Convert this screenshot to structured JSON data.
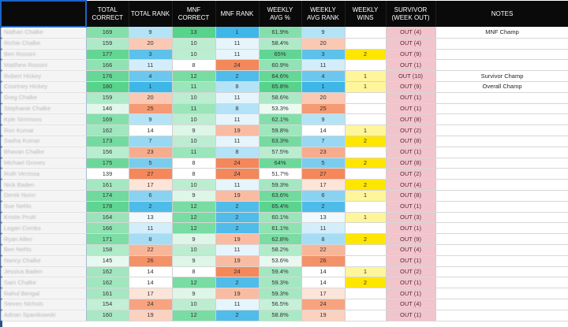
{
  "headers": [
    {
      "key": "name",
      "label": ""
    },
    {
      "key": "total_correct",
      "label": "TOTAL CORRECT"
    },
    {
      "key": "total_rank",
      "label": "TOTAL RANK"
    },
    {
      "key": "mnf_correct",
      "label": "MNF CORRECT"
    },
    {
      "key": "mnf_rank",
      "label": "MNF RANK"
    },
    {
      "key": "weekly_avg",
      "label": "WEEKLY AVG %"
    },
    {
      "key": "weekly_avg_rank",
      "label": "WEEKLY AVG RANK"
    },
    {
      "key": "weekly_wins",
      "label": "WEEKLY WINS"
    },
    {
      "key": "survivor",
      "label": "SURVIVOR (WEEK OUT)"
    },
    {
      "key": "notes",
      "label": "NOTES"
    }
  ],
  "rows": [
    {
      "name": "Nathan Chalke",
      "total_correct": "169",
      "total_rank": "9",
      "mnf_correct": "13",
      "mnf_rank": "1",
      "weekly_avg": "61.9%",
      "weekly_avg_rank": "9",
      "weekly_wins": "",
      "survivor": "OUT (4)",
      "notes": "MNF Champ"
    },
    {
      "name": "Richie Chalke",
      "total_correct": "159",
      "total_rank": "20",
      "mnf_correct": "10",
      "mnf_rank": "11",
      "weekly_avg": "58.4%",
      "weekly_avg_rank": "20",
      "weekly_wins": "",
      "survivor": "OUT (4)",
      "notes": ""
    },
    {
      "name": "Ben Rossini",
      "total_correct": "177",
      "total_rank": "3",
      "mnf_correct": "10",
      "mnf_rank": "11",
      "weekly_avg": "65%",
      "weekly_avg_rank": "3",
      "weekly_wins": "2",
      "survivor": "OUT (9)",
      "notes": ""
    },
    {
      "name": "Matthew Rossini",
      "total_correct": "166",
      "total_rank": "11",
      "mnf_correct": "8",
      "mnf_rank": "24",
      "weekly_avg": "60.9%",
      "weekly_avg_rank": "11",
      "weekly_wins": "",
      "survivor": "OUT (1)",
      "notes": ""
    },
    {
      "name": "Robert Hickey",
      "total_correct": "176",
      "total_rank": "4",
      "mnf_correct": "12",
      "mnf_rank": "2",
      "weekly_avg": "64.6%",
      "weekly_avg_rank": "4",
      "weekly_wins": "1",
      "survivor": "OUT (10)",
      "notes": "Survivor Champ"
    },
    {
      "name": "Courtney Hickey",
      "total_correct": "180",
      "total_rank": "1",
      "mnf_correct": "11",
      "mnf_rank": "8",
      "weekly_avg": "65.8%",
      "weekly_avg_rank": "1",
      "weekly_wins": "1",
      "survivor": "OUT (9)",
      "notes": "Overall Champ"
    },
    {
      "name": "Greg Chalke",
      "total_correct": "159",
      "total_rank": "20",
      "mnf_correct": "10",
      "mnf_rank": "11",
      "weekly_avg": "58.6%",
      "weekly_avg_rank": "20",
      "weekly_wins": "",
      "survivor": "OUT (1)",
      "notes": ""
    },
    {
      "name": "Stephanie Chalke",
      "total_correct": "146",
      "total_rank": "25",
      "mnf_correct": "11",
      "mnf_rank": "8",
      "weekly_avg": "53.3%",
      "weekly_avg_rank": "25",
      "weekly_wins": "",
      "survivor": "OUT (1)",
      "notes": ""
    },
    {
      "name": "Kyle Simmons",
      "total_correct": "169",
      "total_rank": "9",
      "mnf_correct": "10",
      "mnf_rank": "11",
      "weekly_avg": "62.1%",
      "weekly_avg_rank": "9",
      "weekly_wins": "",
      "survivor": "OUT (8)",
      "notes": ""
    },
    {
      "name": "Ron Kumar",
      "total_correct": "162",
      "total_rank": "14",
      "mnf_correct": "9",
      "mnf_rank": "19",
      "weekly_avg": "59.8%",
      "weekly_avg_rank": "14",
      "weekly_wins": "1",
      "survivor": "OUT (2)",
      "notes": ""
    },
    {
      "name": "Sasha Kumar",
      "total_correct": "173",
      "total_rank": "7",
      "mnf_correct": "10",
      "mnf_rank": "11",
      "weekly_avg": "63.3%",
      "weekly_avg_rank": "7",
      "weekly_wins": "2",
      "survivor": "OUT (8)",
      "notes": ""
    },
    {
      "name": "Bhavan Chalke",
      "total_correct": "156",
      "total_rank": "23",
      "mnf_correct": "11",
      "mnf_rank": "8",
      "weekly_avg": "57.5%",
      "weekly_avg_rank": "23",
      "weekly_wins": "",
      "survivor": "OUT (1)",
      "notes": ""
    },
    {
      "name": "Michael Groves",
      "total_correct": "175",
      "total_rank": "5",
      "mnf_correct": "8",
      "mnf_rank": "24",
      "weekly_avg": "64%",
      "weekly_avg_rank": "5",
      "weekly_wins": "2",
      "survivor": "OUT (8)",
      "notes": ""
    },
    {
      "name": "Ruth Verzosa",
      "total_correct": "139",
      "total_rank": "27",
      "mnf_correct": "8",
      "mnf_rank": "24",
      "weekly_avg": "51.7%",
      "weekly_avg_rank": "27",
      "weekly_wins": "",
      "survivor": "OUT (2)",
      "notes": ""
    },
    {
      "name": "Nick Baden",
      "total_correct": "161",
      "total_rank": "17",
      "mnf_correct": "10",
      "mnf_rank": "11",
      "weekly_avg": "59.3%",
      "weekly_avg_rank": "17",
      "weekly_wins": "2",
      "survivor": "OUT (4)",
      "notes": ""
    },
    {
      "name": "Derek Nunn",
      "total_correct": "174",
      "total_rank": "6",
      "mnf_correct": "9",
      "mnf_rank": "19",
      "weekly_avg": "63.6%",
      "weekly_avg_rank": "6",
      "weekly_wins": "1",
      "survivor": "OUT (8)",
      "notes": ""
    },
    {
      "name": "Sue Nehls",
      "total_correct": "178",
      "total_rank": "2",
      "mnf_correct": "12",
      "mnf_rank": "2",
      "weekly_avg": "65.4%",
      "weekly_avg_rank": "2",
      "weekly_wins": "",
      "survivor": "OUT (1)",
      "notes": ""
    },
    {
      "name": "Kristie Pruitt",
      "total_correct": "164",
      "total_rank": "13",
      "mnf_correct": "12",
      "mnf_rank": "2",
      "weekly_avg": "60.1%",
      "weekly_avg_rank": "13",
      "weekly_wins": "1",
      "survivor": "OUT (3)",
      "notes": ""
    },
    {
      "name": "Logan Combs",
      "total_correct": "166",
      "total_rank": "11",
      "mnf_correct": "12",
      "mnf_rank": "2",
      "weekly_avg": "61.1%",
      "weekly_avg_rank": "11",
      "weekly_wins": "",
      "survivor": "OUT (1)",
      "notes": ""
    },
    {
      "name": "Ryan Allen",
      "total_correct": "171",
      "total_rank": "8",
      "mnf_correct": "9",
      "mnf_rank": "19",
      "weekly_avg": "62.8%",
      "weekly_avg_rank": "8",
      "weekly_wins": "2",
      "survivor": "OUT (9)",
      "notes": ""
    },
    {
      "name": "Ben Nehls",
      "total_correct": "158",
      "total_rank": "22",
      "mnf_correct": "10",
      "mnf_rank": "11",
      "weekly_avg": "58.2%",
      "weekly_avg_rank": "22",
      "weekly_wins": "",
      "survivor": "OUT (4)",
      "notes": ""
    },
    {
      "name": "Nancy Chalke",
      "total_correct": "145",
      "total_rank": "26",
      "mnf_correct": "9",
      "mnf_rank": "19",
      "weekly_avg": "53.6%",
      "weekly_avg_rank": "26",
      "weekly_wins": "",
      "survivor": "OUT (1)",
      "notes": ""
    },
    {
      "name": "Jessica Baden",
      "total_correct": "162",
      "total_rank": "14",
      "mnf_correct": "8",
      "mnf_rank": "24",
      "weekly_avg": "59.4%",
      "weekly_avg_rank": "14",
      "weekly_wins": "1",
      "survivor": "OUT (2)",
      "notes": ""
    },
    {
      "name": "Sam Chalke",
      "total_correct": "162",
      "total_rank": "14",
      "mnf_correct": "12",
      "mnf_rank": "2",
      "weekly_avg": "59.3%",
      "weekly_avg_rank": "14",
      "weekly_wins": "2",
      "survivor": "OUT (1)",
      "notes": ""
    },
    {
      "name": "Rahul Bengal",
      "total_correct": "161",
      "total_rank": "17",
      "mnf_correct": "9",
      "mnf_rank": "19",
      "weekly_avg": "59.3%",
      "weekly_avg_rank": "17",
      "weekly_wins": "",
      "survivor": "OUT (1)",
      "notes": ""
    },
    {
      "name": "Steven Nichols",
      "total_correct": "154",
      "total_rank": "24",
      "mnf_correct": "10",
      "mnf_rank": "11",
      "weekly_avg": "56.5%",
      "weekly_avg_rank": "24",
      "weekly_wins": "",
      "survivor": "OUT (4)",
      "notes": ""
    },
    {
      "name": "Adrian Spanikowski",
      "total_correct": "160",
      "total_rank": "19",
      "mnf_correct": "12",
      "mnf_rank": "2",
      "weekly_avg": "58.8%",
      "weekly_avg_rank": "19",
      "weekly_wins": "",
      "survivor": "OUT (1)",
      "notes": ""
    }
  ],
  "colors": {
    "header_bg": "#0a0a0a",
    "selected_border": "#1b63c9",
    "survivor_bg": "#f2c4cc",
    "wins_bg": "#ffe600",
    "scale_green": "#57d38c",
    "scale_white": "#ffffff",
    "scale_orange": "#f4885a",
    "scale_blue": "#3fb6e8"
  }
}
